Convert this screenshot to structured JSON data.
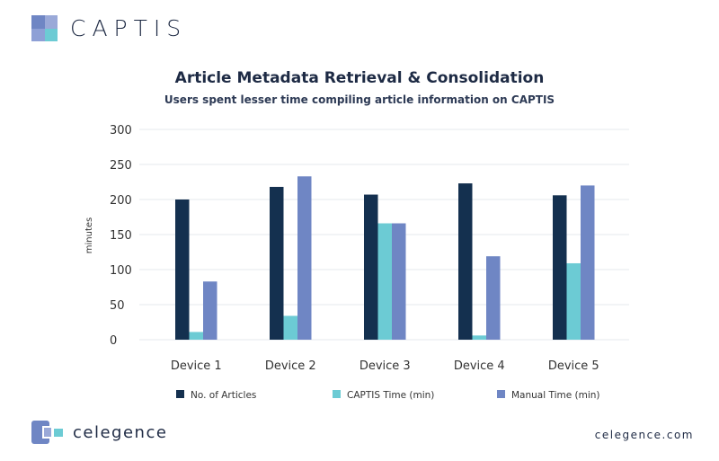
{
  "brand": {
    "product": "CAPTIS",
    "company": "celegence",
    "website": "celegence.com"
  },
  "colors": {
    "articles": "#14304f",
    "captis": "#6ccbd4",
    "manual": "#6f86c4"
  },
  "chart_data": {
    "type": "bar",
    "title": "Article Metadata Retrieval & Consolidation",
    "subtitle": "Users spent lesser time compiling article information on CAPTIS",
    "xlabel": "",
    "ylabel": "minutes",
    "ylim": [
      0,
      300
    ],
    "yticks": [
      0,
      50,
      100,
      150,
      200,
      250,
      300
    ],
    "grid": true,
    "legend_position": "bottom",
    "categories": [
      "Device 1",
      "Device 2",
      "Device 3",
      "Device 4",
      "Device 5"
    ],
    "series": [
      {
        "name": "No. of Articles",
        "values": [
          200,
          218,
          207,
          223,
          206
        ]
      },
      {
        "name": "CAPTIS Time (min)",
        "values": [
          11,
          34,
          166,
          6,
          109
        ]
      },
      {
        "name": "Manual Time (min)",
        "values": [
          83,
          233,
          166,
          119,
          220
        ]
      }
    ]
  }
}
